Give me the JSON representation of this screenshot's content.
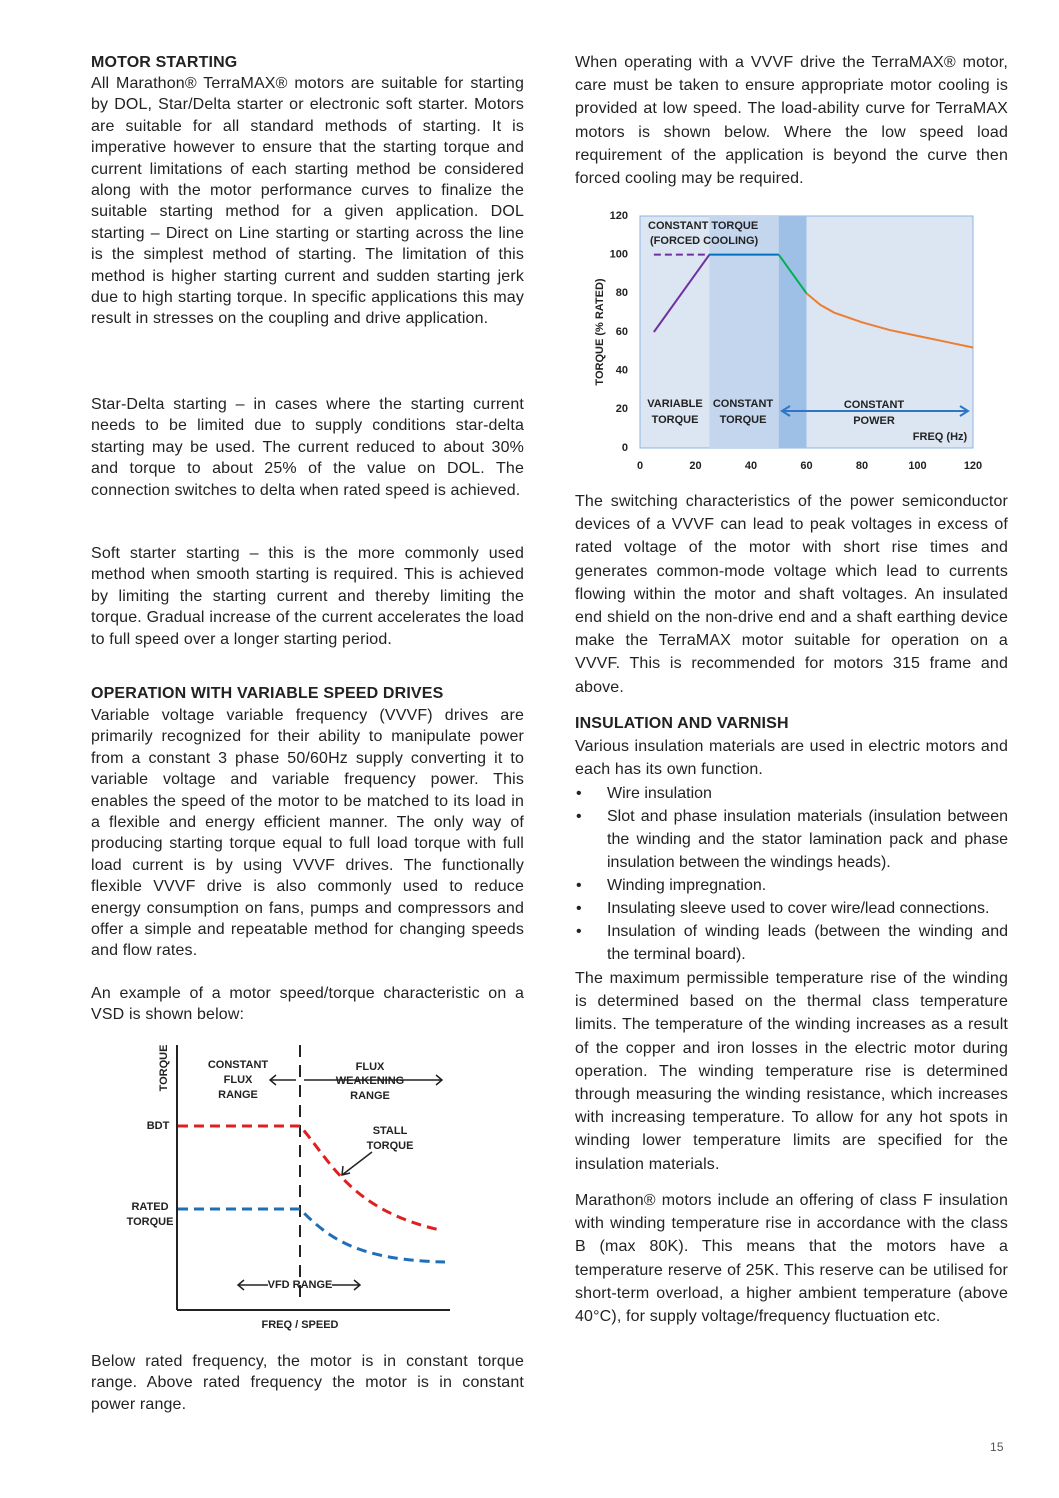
{
  "motor_starting": {
    "heading": "MOTOR STARTING",
    "paragraphs": [
      "All Marathon® TerraMAX® motors are suitable for starting by DOL, Star/Delta starter or electronic soft starter. Motors are suitable for all standard methods of starting. It is imperative however to ensure that the starting torque and current limitations of each starting method be considered along with the motor performance curves to finalize the suitable starting method for a given application. DOL starting – Direct on Line starting or starting across the line is the simplest method of starting. The limitation of this method is higher starting current and sudden starting jerk due to high starting torque. In specific applications this may result in stresses on the coupling and drive application.",
      "Star-Delta starting – in cases where the starting current needs to be limited due to supply conditions star-delta starting may be used. The current reduced to about 30% and torque to about 25% of the value on DOL. The connection switches to delta when rated speed is achieved.",
      "Soft starter starting – this is the more commonly used method when smooth starting is required. This is achieved by limiting the starting current and thereby limiting the torque. Gradual increase of the current accelerates the load to full speed over a longer starting period."
    ]
  },
  "variable_speed_drives": {
    "heading": "OPERATION WITH VARIABLE SPEED DRIVES",
    "paragraphs": [
      "Variable voltage variable frequency (VVVF) drives are primarily recognized for their ability to manipulate power from a constant 3 phase 50/60Hz supply converting it to variable voltage and variable frequency power. This enables the speed of the motor to be matched to its load in a flexible and energy efficient manner. The only way of producing starting torque equal to full load torque with full load current is by using VVVF drives. The functionally flexible VVVF drive is also commonly used to reduce energy consumption on fans, pumps and compressors and offer a simple and repeatable method for changing speeds and flow rates.",
      "An example of a motor speed/torque characteristic on a VSD is shown below:"
    ],
    "figure": {
      "y_label": "TORQUE",
      "x_label": "FREQ / SPEED",
      "bdt": "BDT",
      "rated_torque": [
        "RATED",
        "TORQUE"
      ],
      "constant_flux_range": [
        "CONSTANT",
        "FLUX",
        "RANGE"
      ],
      "flux_weakening_range": [
        "FLUX",
        "WEAKENING",
        "RANGE"
      ],
      "stall_torque": [
        "STALL",
        "TORQUE"
      ],
      "vfd_range": "VFD RANGE"
    },
    "closing": "Below rated frequency, the motor is in constant torque range. Above rated frequency the motor is in constant power range."
  },
  "vvvf_intro": "When operating with a VVVF drive the TerraMAX® motor, care must be taken to ensure appropriate motor cooling is provided at low speed. The load-ability curve for TerraMAX motors is shown below. Where the low speed load requirement of the application is beyond the curve then forced cooling may be required.",
  "chart_data": {
    "type": "line",
    "y_label": "TORQUE (% RATED)",
    "xlim": [
      0,
      120
    ],
    "ylim": [
      0,
      120
    ],
    "xticks": [
      0,
      20,
      40,
      60,
      80,
      100,
      120
    ],
    "yticks": [
      0,
      20,
      40,
      60,
      80,
      100,
      120
    ],
    "background": "#dce6f2",
    "bands": [
      {
        "from": 25,
        "to": 50,
        "color": "#c3d6ee"
      },
      {
        "from": 50,
        "to": 60,
        "color": "#9fc0e6"
      }
    ],
    "series": [
      {
        "color": "#7030a0",
        "dashed": true,
        "x": [
          5,
          25
        ],
        "values": [
          100,
          100
        ]
      },
      {
        "color": "#7030a0",
        "dashed": false,
        "x": [
          5,
          25
        ],
        "values": [
          60,
          100
        ]
      },
      {
        "color": "#0070c0",
        "dashed": false,
        "x": [
          25,
          50
        ],
        "values": [
          100,
          100
        ]
      },
      {
        "color": "#00b050",
        "dashed": false,
        "x": [
          50,
          60
        ],
        "values": [
          100,
          80
        ]
      },
      {
        "color": "#ed7d31",
        "dashed": false,
        "x": [
          60,
          65,
          70,
          80,
          90,
          100,
          110,
          120
        ],
        "values": [
          80,
          74,
          70,
          65,
          61,
          58,
          55,
          52
        ]
      }
    ],
    "annotations": [
      "CONSTANT TORQUE",
      "(FORCED COOLING)",
      "VARIABLE",
      "TORQUE",
      "CONSTANT",
      "TORQUE",
      "CONSTANT",
      "POWER",
      "FREQ (Hz)"
    ]
  },
  "switching_paragraph": "The switching characteristics of the power semiconductor devices of a VVVF can lead to peak voltages in excess of rated voltage of the motor with short rise times and generates common-mode voltage which lead to currents flowing within the motor and shaft voltages. An insulated end shield on the non-drive end and a shaft earthing device make the TerraMAX motor suitable for operation on a VVVF. This is recommended for motors 315 frame and above.",
  "insulation": {
    "heading": "INSULATION AND VARNISH",
    "intro": "Various insulation materials are used in electric motors and each has its own function.",
    "bullets": [
      "Wire insulation",
      "Slot and phase insulation materials (insulation between the winding and the stator lamination pack and phase insulation between the windings heads).",
      "Winding impregnation.",
      "Insulating sleeve used to cover wire/lead connections.",
      "Insulation of winding leads (between the winding and the terminal board)."
    ],
    "paragraphs": [
      "The maximum permissible temperature rise of the winding is determined based on the thermal class temperature limits. The temperature of the winding increases as a result of the copper and iron losses in the electric motor during operation. The winding temperature rise is determined through measuring the winding resistance, which increases with increasing temperature. To allow for any hot spots in winding lower temperature limits are specified for the insulation materials.",
      "Marathon® motors include an offering of class F insulation with winding temperature rise in accordance with the class B (max 80K). This means that the motors have a temperature reserve of 25K. This reserve can be utilised for short-term overload, a higher ambient temperature (above 40°C), for supply voltage/frequency fluctuation etc."
    ]
  },
  "page_number": "15"
}
